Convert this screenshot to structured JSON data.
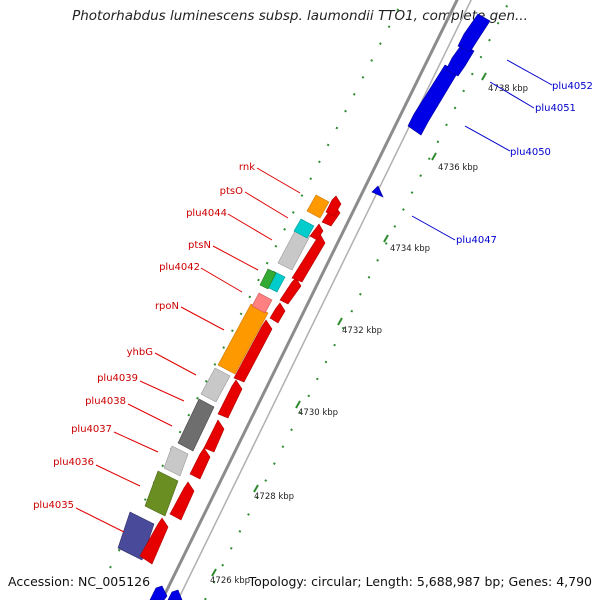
{
  "title": "Photorhabdus luminescens subsp. laumondii TTO1, complete gen...",
  "footer": {
    "accession": "Accession: NC_005126",
    "summary": "Topology: circular; Length: 5,688,987 bp; Genes: 4,790"
  },
  "colors": {
    "plus_strand": "#e00000",
    "minus_strand": "#0000d8",
    "backbone": "#8c8c8c",
    "tick": "#2e8b2e",
    "label_plus": "#cc0000",
    "label_minus": "#0000cc"
  },
  "axis_ticks": [
    "4726 kbp",
    "4728 kbp",
    "4730 kbp",
    "4732 kbp",
    "4734 kbp",
    "4736 kbp",
    "4738 kbp"
  ],
  "genes": [
    {
      "name": "plu4035",
      "strand": "+"
    },
    {
      "name": "plu4036",
      "strand": "+"
    },
    {
      "name": "plu4037",
      "strand": "+"
    },
    {
      "name": "plu4038",
      "strand": "+"
    },
    {
      "name": "plu4039",
      "strand": "+"
    },
    {
      "name": "yhbG",
      "strand": "+"
    },
    {
      "name": "rpoN",
      "strand": "+"
    },
    {
      "name": "plu4042",
      "strand": "+"
    },
    {
      "name": "ptsN",
      "strand": "+"
    },
    {
      "name": "plu4044",
      "strand": "+"
    },
    {
      "name": "ptsO",
      "strand": "+"
    },
    {
      "name": "rnk",
      "strand": "+"
    },
    {
      "name": "plu4047",
      "strand": "-"
    },
    {
      "name": "plu4050",
      "strand": "-"
    },
    {
      "name": "plu4051",
      "strand": "-"
    },
    {
      "name": "plu4052",
      "strand": "-"
    }
  ],
  "cog_colors": [
    "#4a4a9a",
    "#6b8e23",
    "#c8c8c8",
    "#6e6e6e",
    "#c8c8c8",
    "#ff9900",
    "#ff8080",
    "#00cccc",
    "#33aa33",
    "#c8c8c8",
    "#00cccc",
    "#ff9900"
  ]
}
